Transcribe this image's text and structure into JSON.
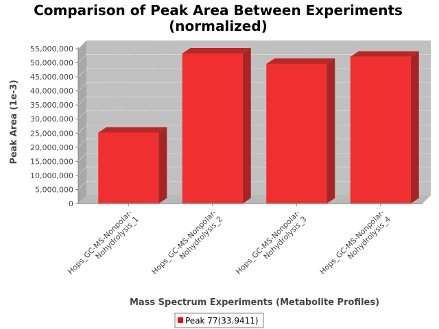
{
  "chart_data": {
    "type": "bar",
    "title_lines": [
      "Comparison of Peak Area Between Experiments",
      "(normalized)"
    ],
    "xlabel": "Mass Spectrum Experiments (Metabolite Profiles)",
    "ylabel": "Peak Area (1e-3)",
    "ylim": [
      0,
      55000000
    ],
    "yticks": [
      0,
      5000000,
      10000000,
      15000000,
      20000000,
      25000000,
      30000000,
      35000000,
      40000000,
      45000000,
      50000000,
      55000000
    ],
    "ytick_labels": [
      "0",
      "5,000,000",
      "10,000,000",
      "15,000,000",
      "20,000,000",
      "25,000,000",
      "30,000,000",
      "35,000,000",
      "40,000,000",
      "45,000,000",
      "50,000,000",
      "55,000,000"
    ],
    "categories": [
      [
        "Hops_GC-MS-Nonpolar-",
        "Nohydrolysis_1"
      ],
      [
        "Hops_GC-MS-Nonpolar-",
        "Nohydrolysis_2"
      ],
      [
        "Hops_GC-MS-Nonpolar-",
        "Nohydrolysis_3"
      ],
      [
        "Hops_GC-MS-Nonpolar-",
        "Nohydrolysis_4"
      ]
    ],
    "series": [
      {
        "name": "Peak 77(33.9411)",
        "values": [
          25200000,
          53300000,
          49600000,
          52100000
        ]
      }
    ],
    "grid": true,
    "legend_position": "bottom",
    "colors": {
      "bar_front": "#f03030",
      "bar_top": "#b82828",
      "bar_side": "#a82424",
      "plot_back": "#c0c0c0",
      "plot_side": "#a8a8a8",
      "plot_floor": "#b8b8b8",
      "grid": "#ffffff",
      "legend_swatch": "#ff0000"
    }
  }
}
